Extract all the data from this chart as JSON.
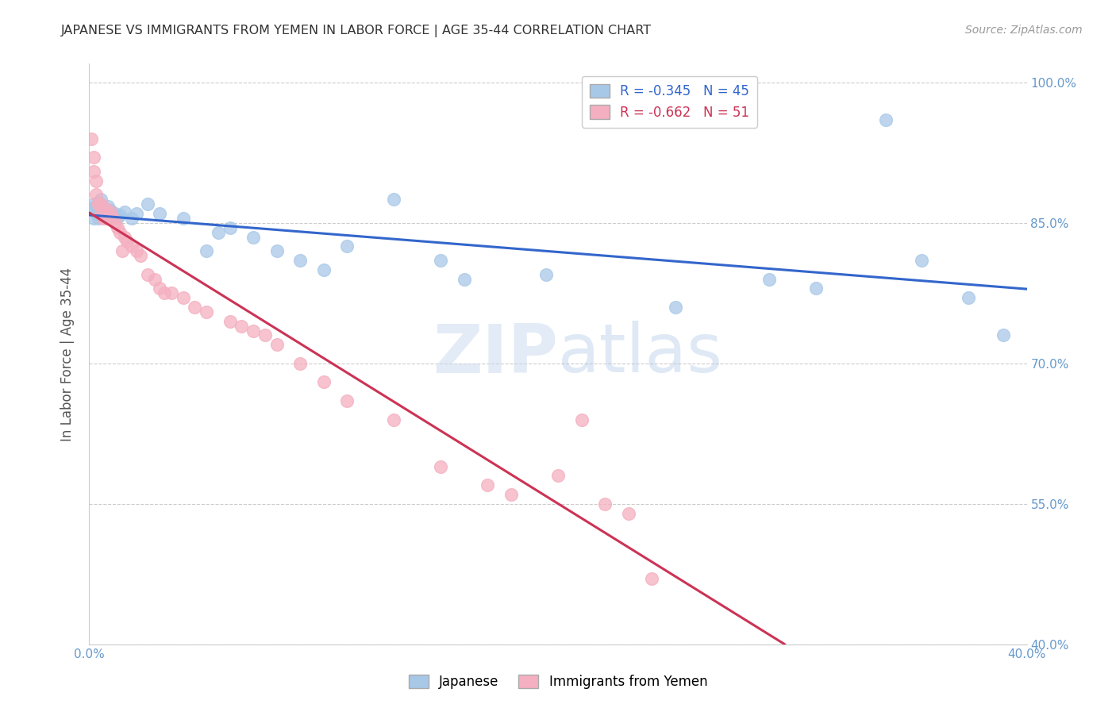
{
  "title": "JAPANESE VS IMMIGRANTS FROM YEMEN IN LABOR FORCE | AGE 35-44 CORRELATION CHART",
  "source": "Source: ZipAtlas.com",
  "ylabel": "In Labor Force | Age 35-44",
  "xlim": [
    0.0,
    0.4
  ],
  "ylim": [
    0.4,
    1.02
  ],
  "xtick_positions": [
    0.0,
    0.05,
    0.1,
    0.15,
    0.2,
    0.25,
    0.3,
    0.35,
    0.4
  ],
  "xticklabels": [
    "0.0%",
    "",
    "",
    "",
    "",
    "",
    "",
    "",
    "40.0%"
  ],
  "ytick_positions": [
    0.4,
    0.55,
    0.7,
    0.85,
    1.0
  ],
  "yticklabels": [
    "40.0%",
    "55.0%",
    "70.0%",
    "85.0%",
    "100.0%"
  ],
  "blue_R": -0.345,
  "blue_N": 45,
  "pink_R": -0.662,
  "pink_N": 51,
  "blue_color": "#a8c8e8",
  "pink_color": "#f4afc0",
  "blue_line_color": "#3366cc",
  "pink_line_color": "#cc3355",
  "watermark": "ZIPatlas",
  "legend_label_blue": "Japanese",
  "legend_label_pink": "Immigrants from Yemen",
  "blue_x": [
    0.001,
    0.002,
    0.002,
    0.003,
    0.003,
    0.004,
    0.004,
    0.005,
    0.005,
    0.006,
    0.006,
    0.007,
    0.007,
    0.008,
    0.008,
    0.009,
    0.01,
    0.011,
    0.012,
    0.013,
    0.015,
    0.018,
    0.02,
    0.025,
    0.03,
    0.04,
    0.05,
    0.055,
    0.06,
    0.07,
    0.08,
    0.09,
    0.1,
    0.11,
    0.13,
    0.15,
    0.16,
    0.195,
    0.25,
    0.29,
    0.31,
    0.34,
    0.355,
    0.375,
    0.39
  ],
  "blue_y": [
    0.865,
    0.87,
    0.855,
    0.86,
    0.868,
    0.872,
    0.855,
    0.862,
    0.875,
    0.86,
    0.858,
    0.865,
    0.862,
    0.855,
    0.868,
    0.863,
    0.858,
    0.86,
    0.856,
    0.858,
    0.862,
    0.855,
    0.86,
    0.87,
    0.86,
    0.855,
    0.82,
    0.84,
    0.845,
    0.835,
    0.82,
    0.81,
    0.8,
    0.825,
    0.875,
    0.81,
    0.79,
    0.795,
    0.76,
    0.79,
    0.78,
    0.96,
    0.81,
    0.77,
    0.73
  ],
  "pink_x": [
    0.001,
    0.002,
    0.002,
    0.003,
    0.003,
    0.004,
    0.004,
    0.005,
    0.005,
    0.006,
    0.006,
    0.007,
    0.007,
    0.008,
    0.008,
    0.009,
    0.01,
    0.011,
    0.012,
    0.013,
    0.014,
    0.015,
    0.016,
    0.018,
    0.02,
    0.022,
    0.025,
    0.028,
    0.03,
    0.032,
    0.035,
    0.04,
    0.045,
    0.05,
    0.06,
    0.065,
    0.07,
    0.075,
    0.08,
    0.09,
    0.1,
    0.11,
    0.13,
    0.15,
    0.17,
    0.18,
    0.2,
    0.21,
    0.22,
    0.23,
    0.24
  ],
  "pink_y": [
    0.94,
    0.92,
    0.905,
    0.895,
    0.88,
    0.87,
    0.87,
    0.86,
    0.87,
    0.855,
    0.862,
    0.855,
    0.865,
    0.858,
    0.855,
    0.862,
    0.855,
    0.85,
    0.845,
    0.84,
    0.82,
    0.835,
    0.83,
    0.825,
    0.82,
    0.815,
    0.795,
    0.79,
    0.78,
    0.775,
    0.775,
    0.77,
    0.76,
    0.755,
    0.745,
    0.74,
    0.735,
    0.73,
    0.72,
    0.7,
    0.68,
    0.66,
    0.64,
    0.59,
    0.57,
    0.56,
    0.58,
    0.64,
    0.55,
    0.54,
    0.47
  ],
  "background_color": "#ffffff",
  "grid_color": "#cccccc",
  "title_color": "#333333",
  "axis_color": "#6699cc",
  "right_axis_color": "#6699cc"
}
